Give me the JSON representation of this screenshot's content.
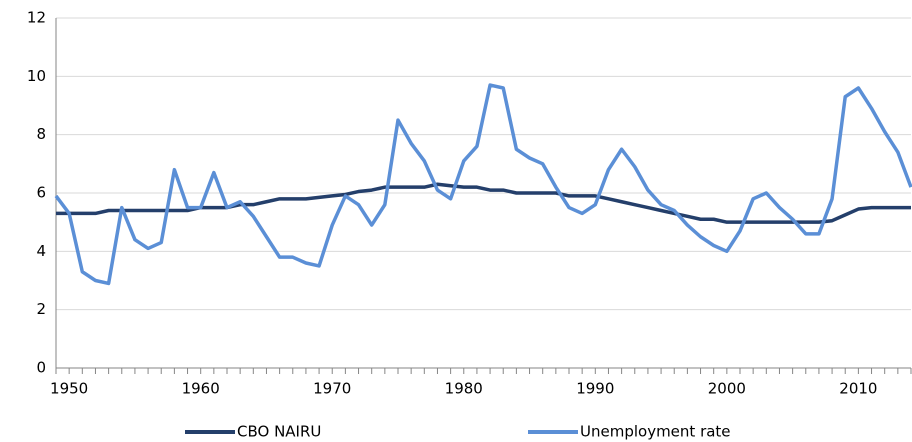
{
  "chart_data": {
    "type": "line",
    "x": [
      1949,
      1950,
      1951,
      1952,
      1953,
      1954,
      1955,
      1956,
      1957,
      1958,
      1959,
      1960,
      1961,
      1962,
      1963,
      1964,
      1965,
      1966,
      1967,
      1968,
      1969,
      1970,
      1971,
      1972,
      1973,
      1974,
      1975,
      1976,
      1977,
      1978,
      1979,
      1980,
      1981,
      1982,
      1983,
      1984,
      1985,
      1986,
      1987,
      1988,
      1989,
      1990,
      1991,
      1992,
      1993,
      1994,
      1995,
      1996,
      1997,
      1998,
      1999,
      2000,
      2001,
      2002,
      2003,
      2004,
      2005,
      2006,
      2007,
      2008,
      2009,
      2010,
      2011,
      2012,
      2013,
      2014
    ],
    "series": [
      {
        "name": "CBO NAIRU",
        "color": "#243f6b",
        "values": [
          5.3,
          5.3,
          5.3,
          5.3,
          5.4,
          5.4,
          5.4,
          5.4,
          5.4,
          5.4,
          5.4,
          5.5,
          5.5,
          5.5,
          5.6,
          5.6,
          5.7,
          5.8,
          5.8,
          5.8,
          5.85,
          5.9,
          5.95,
          6.05,
          6.1,
          6.2,
          6.2,
          6.2,
          6.2,
          6.3,
          6.25,
          6.2,
          6.2,
          6.1,
          6.1,
          6.0,
          6.0,
          6.0,
          6.0,
          5.9,
          5.9,
          5.9,
          5.8,
          5.7,
          5.6,
          5.5,
          5.4,
          5.3,
          5.2,
          5.1,
          5.1,
          5.0,
          5.0,
          5.0,
          5.0,
          5.0,
          5.0,
          5.0,
          5.0,
          5.05,
          5.25,
          5.45,
          5.5,
          5.5,
          5.5,
          5.5
        ]
      },
      {
        "name": "Unemployment rate",
        "color": "#5b8fd6",
        "values": [
          5.9,
          5.3,
          3.3,
          3.0,
          2.9,
          5.5,
          4.4,
          4.1,
          4.3,
          6.8,
          5.5,
          5.5,
          6.7,
          5.5,
          5.7,
          5.2,
          4.5,
          3.8,
          3.8,
          3.6,
          3.5,
          4.9,
          5.9,
          5.6,
          4.9,
          5.6,
          8.5,
          7.7,
          7.1,
          6.1,
          5.8,
          7.1,
          7.6,
          9.7,
          9.6,
          7.5,
          7.2,
          7.0,
          6.2,
          5.5,
          5.3,
          5.6,
          6.8,
          7.5,
          6.9,
          6.1,
          5.6,
          5.4,
          4.9,
          4.5,
          4.2,
          4.0,
          4.7,
          5.8,
          6.0,
          5.5,
          5.1,
          4.6,
          4.6,
          5.8,
          9.3,
          9.6,
          8.9,
          8.1,
          7.4,
          6.2
        ]
      }
    ],
    "xlim": [
      1949,
      2014
    ],
    "xticks": [
      1950,
      1960,
      1970,
      1980,
      1990,
      2000,
      2010
    ],
    "ylim": [
      0,
      12
    ],
    "yticks": [
      0,
      2,
      4,
      6,
      8,
      10,
      12
    ],
    "grid": true,
    "legend": "bottom"
  }
}
